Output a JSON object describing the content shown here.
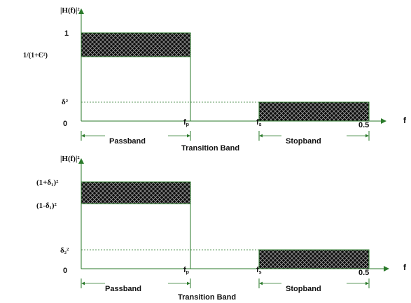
{
  "colors": {
    "axis": "#2a7a2a",
    "hatch_bg": "#0d0d0d",
    "hatch_line": "#9a9a9a",
    "text": "#111111"
  },
  "top": {
    "y_axis_label": "|H(f)|²",
    "x_axis_label": "f",
    "tick_one": "1",
    "tick_pass_low": "1/(1+Є²)",
    "tick_stop": "δ²",
    "tick_zero": "0",
    "tick_fp": "f",
    "tick_fp_sub": "p",
    "tick_fs": "f",
    "tick_fs_sub": "s",
    "tick_half": "0.5",
    "passband_label": "Passband",
    "stopband_label": "Stopband",
    "transition_label": "Transition Band"
  },
  "bottom": {
    "y_axis_label": "|H(f)|²",
    "x_axis_label": "f",
    "tick_pass_high": "(1+δ₁)²",
    "tick_pass_low": "(1-δ₁)²",
    "tick_stop": "δ₂²",
    "tick_zero": "0",
    "tick_fp": "f",
    "tick_fp_sub": "p",
    "tick_fs": "f",
    "tick_fs_sub": "s",
    "tick_half": "0.5",
    "passband_label": "Passband",
    "stopband_label": "Stopband",
    "transition_label": "Transition Band"
  }
}
